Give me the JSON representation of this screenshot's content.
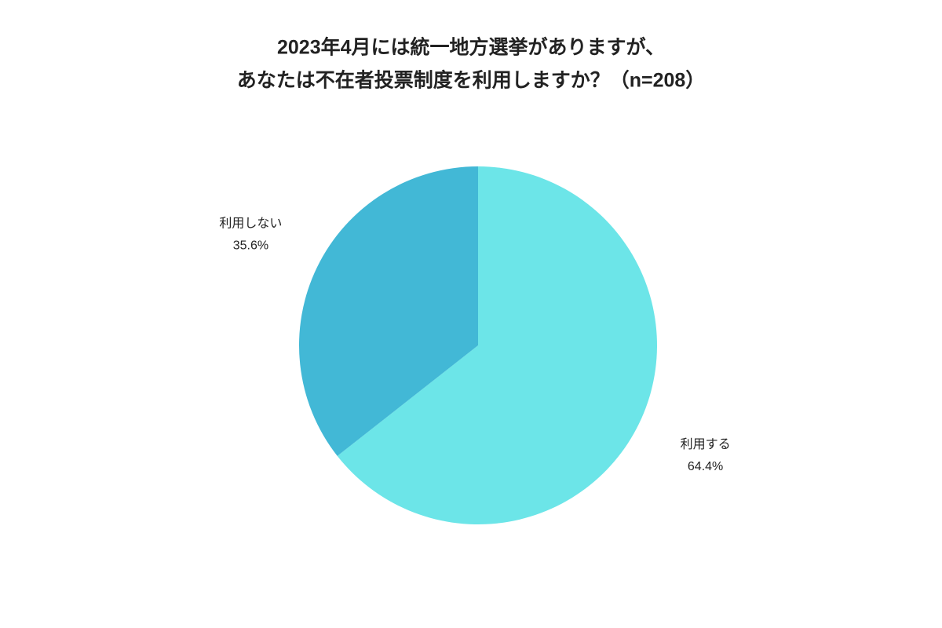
{
  "chart_data": {
    "type": "pie",
    "title": [
      "2023年4月には統一地方選挙がありますが、",
      "あなたは不在者投票制度を利用しますか？（n=208）"
    ],
    "categories": [
      "利用する",
      "利用しない"
    ],
    "values": [
      64.4,
      35.6
    ],
    "value_labels": [
      "64.4%",
      "35.6%"
    ],
    "colors": [
      "#6ce5e8",
      "#42b8d6"
    ]
  }
}
